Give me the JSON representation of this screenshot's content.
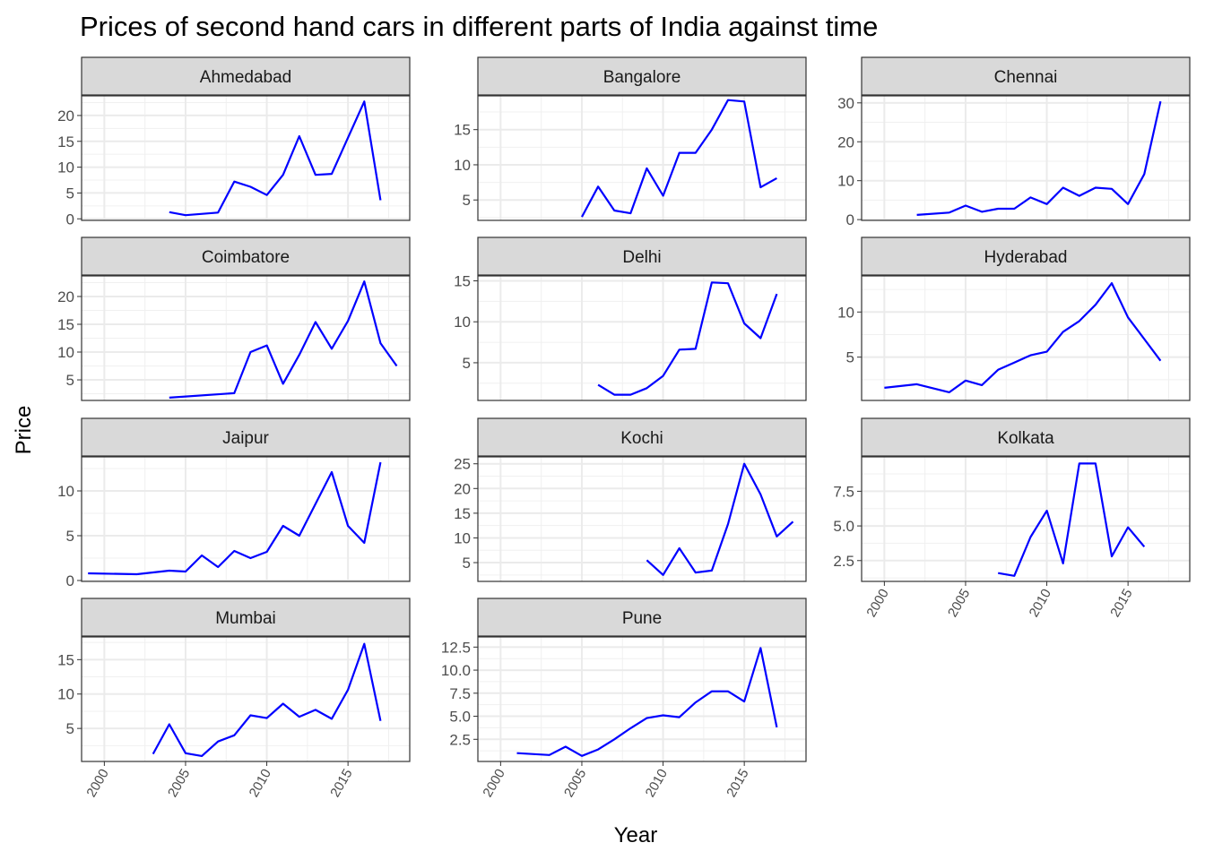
{
  "chart_data": {
    "type": "line",
    "title": "Prices of second hand cars in different parts of India against time",
    "xlabel": "Year",
    "ylabel": "Price",
    "xlim": [
      1998.6,
      2018.8
    ],
    "x_ticks": [
      2000,
      2005,
      2010,
      2015
    ],
    "line_color": "#0000ff",
    "strip_color": "#d9d9d9",
    "grid": true,
    "panels": [
      {
        "name": "Ahmedabad",
        "ylim": [
          -0.3,
          23.8
        ],
        "y_ticks": [
          "0",
          "5",
          "10",
          "15",
          "20"
        ],
        "x": [
          2004,
          2005,
          2007,
          2008,
          2009,
          2010,
          2011,
          2012,
          2013,
          2014,
          2016,
          2017
        ],
        "y": [
          1.3,
          0.7,
          1.2,
          7.2,
          6.2,
          4.6,
          8.5,
          16.0,
          8.5,
          8.7,
          22.7,
          3.6
        ]
      },
      {
        "name": "Bangalore",
        "ylim": [
          2.1,
          19.8
        ],
        "y_ticks": [
          "5",
          "10",
          "15"
        ],
        "x": [
          2005,
          2006,
          2007,
          2008,
          2009,
          2010,
          2011,
          2012,
          2013,
          2014,
          2015,
          2016,
          2017
        ],
        "y": [
          2.6,
          6.9,
          3.5,
          3.1,
          9.5,
          5.6,
          11.7,
          11.7,
          15.0,
          19.2,
          19.0,
          6.8,
          8.1
        ]
      },
      {
        "name": "Chennai",
        "ylim": [
          -0.2,
          31.8
        ],
        "y_ticks": [
          "0",
          "10",
          "20",
          "30"
        ],
        "x": [
          2002,
          2004,
          2005,
          2006,
          2007,
          2008,
          2009,
          2010,
          2011,
          2012,
          2013,
          2014,
          2015,
          2016,
          2017
        ],
        "y": [
          1.2,
          1.8,
          3.6,
          2.0,
          2.8,
          2.8,
          5.7,
          4.0,
          8.2,
          6.1,
          8.2,
          7.9,
          4.0,
          11.7,
          30.4
        ]
      },
      {
        "name": "Coimbatore",
        "ylim": [
          1.3,
          23.7
        ],
        "y_ticks": [
          "5",
          "10",
          "15",
          "20"
        ],
        "x": [
          2004,
          2008,
          2009,
          2010,
          2011,
          2012,
          2013,
          2014,
          2015,
          2016,
          2017,
          2018
        ],
        "y": [
          1.8,
          2.6,
          10.0,
          11.2,
          4.3,
          9.5,
          15.4,
          10.6,
          15.6,
          22.7,
          11.6,
          7.5
        ]
      },
      {
        "name": "Delhi",
        "ylim": [
          0.4,
          15.6
        ],
        "y_ticks": [
          "5",
          "10",
          "15"
        ],
        "x": [
          2006,
          2007,
          2008,
          2009,
          2010,
          2011,
          2012,
          2013,
          2014,
          2015,
          2016,
          2017
        ],
        "y": [
          2.3,
          1.1,
          1.1,
          1.9,
          3.4,
          6.6,
          6.7,
          14.8,
          14.7,
          9.8,
          8.0,
          13.4
        ]
      },
      {
        "name": "Hyderabad",
        "ylim": [
          0.2,
          14.0
        ],
        "y_ticks": [
          "5",
          "10"
        ],
        "x": [
          2000,
          2002,
          2004,
          2005,
          2006,
          2007,
          2008,
          2009,
          2010,
          2011,
          2012,
          2013,
          2014,
          2015,
          2016,
          2017
        ],
        "y": [
          1.6,
          2.0,
          1.1,
          2.4,
          1.9,
          3.6,
          4.4,
          5.2,
          5.6,
          7.8,
          9.0,
          10.8,
          13.2,
          9.4,
          7.0,
          4.6
        ]
      },
      {
        "name": "Jaipur",
        "ylim": [
          -0.1,
          13.8
        ],
        "y_ticks": [
          "0",
          "5",
          "10"
        ],
        "x": [
          1999,
          2002,
          2004,
          2005,
          2006,
          2007,
          2008,
          2009,
          2010,
          2011,
          2012,
          2014,
          2015,
          2016,
          2017
        ],
        "y": [
          0.8,
          0.7,
          1.1,
          1.0,
          2.8,
          1.5,
          3.3,
          2.5,
          3.2,
          6.1,
          5.0,
          12.1,
          6.1,
          4.2,
          13.2
        ]
      },
      {
        "name": "Kochi",
        "ylim": [
          1.2,
          26.4
        ],
        "y_ticks": [
          "5",
          "10",
          "15",
          "20",
          "25"
        ],
        "x": [
          2009,
          2010,
          2011,
          2012,
          2013,
          2014,
          2015,
          2016,
          2017,
          2018
        ],
        "y": [
          5.5,
          2.5,
          7.9,
          3.0,
          3.4,
          12.8,
          25.0,
          18.8,
          10.3,
          13.3
        ]
      },
      {
        "name": "Kolkata",
        "ylim": [
          1.0,
          9.98
        ],
        "y_ticks": [
          "2.5",
          "5.0",
          "7.5"
        ],
        "x": [
          2007,
          2008,
          2009,
          2010,
          2011,
          2012,
          2013,
          2014,
          2015,
          2016
        ],
        "y": [
          1.6,
          1.4,
          4.2,
          6.1,
          2.3,
          9.5,
          9.5,
          2.8,
          4.9,
          3.5
        ]
      },
      {
        "name": "Mumbai",
        "ylim": [
          0.2,
          18.3
        ],
        "y_ticks": [
          "5",
          "10",
          "15"
        ],
        "x": [
          2003,
          2004,
          2005,
          2006,
          2007,
          2008,
          2009,
          2010,
          2011,
          2012,
          2013,
          2014,
          2015,
          2016,
          2017
        ],
        "y": [
          1.3,
          5.6,
          1.4,
          1.0,
          3.1,
          4.0,
          6.9,
          6.5,
          8.6,
          6.7,
          7.7,
          6.4,
          10.6,
          17.3,
          6.1
        ]
      },
      {
        "name": "Pune",
        "ylim": [
          0.1,
          13.6
        ],
        "y_ticks": [
          "2.5",
          "5.0",
          "7.5",
          "10.0",
          "12.5"
        ],
        "x": [
          2001,
          2003,
          2004,
          2005,
          2006,
          2007,
          2008,
          2009,
          2010,
          2011,
          2012,
          2013,
          2014,
          2015,
          2016,
          2017
        ],
        "y": [
          1.0,
          0.8,
          1.7,
          0.7,
          1.4,
          2.5,
          3.7,
          4.8,
          5.1,
          4.9,
          6.5,
          7.7,
          7.7,
          6.6,
          12.4,
          3.8
        ]
      }
    ]
  }
}
